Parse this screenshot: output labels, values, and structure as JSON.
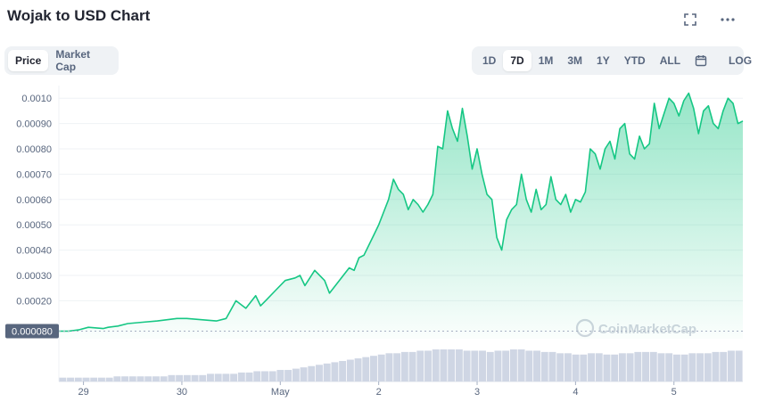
{
  "header": {
    "title": "Wojak to USD Chart",
    "fullscreen_icon": "expand-icon",
    "more_icon": "more-horizontal-icon"
  },
  "metric_tabs": [
    {
      "label": "Price",
      "active": true
    },
    {
      "label": "Market Cap",
      "active": false
    }
  ],
  "range_tabs": [
    {
      "label": "1D",
      "active": false
    },
    {
      "label": "7D",
      "active": true
    },
    {
      "label": "1M",
      "active": false
    },
    {
      "label": "3M",
      "active": false
    },
    {
      "label": "1Y",
      "active": false
    },
    {
      "label": "YTD",
      "active": false
    },
    {
      "label": "ALL",
      "active": false
    }
  ],
  "calendar_icon": "calendar-icon",
  "log_label": "LOG",
  "watermark": "CoinMarketCap",
  "colors": {
    "line": "#16c784",
    "volume": "#cfd6e4",
    "badge": "#58667e",
    "grid": "#eff2f5"
  },
  "chart_data": {
    "type": "area",
    "title": "Wojak to USD Chart",
    "xlabel": "",
    "ylabel": "",
    "ylim": [
      5e-05,
      0.00105
    ],
    "y_ticks": [
      "0.0010",
      "0.00090",
      "0.00080",
      "0.00070",
      "0.00060",
      "0.00050",
      "0.00040",
      "0.00030",
      "0.00020",
      "0.000080"
    ],
    "y_tick_values": [
      0.001,
      0.0009,
      0.0008,
      0.0007,
      0.0006,
      0.0005,
      0.0004,
      0.0003,
      0.0002
    ],
    "current_price_label": "0.000080",
    "current_price_value": 8e-05,
    "x_ticks": [
      {
        "label": "29",
        "t": 0.25
      },
      {
        "label": "30",
        "t": 1.25
      },
      {
        "label": "May",
        "t": 2.25
      },
      {
        "label": "2",
        "t": 3.25
      },
      {
        "label": "3",
        "t": 4.25
      },
      {
        "label": "4",
        "t": 5.25
      },
      {
        "label": "5",
        "t": 6.25
      }
    ],
    "xlim": [
      0,
      6.95
    ],
    "series": [
      {
        "values_t": [
          0.0,
          0.1,
          0.2,
          0.3,
          0.45,
          0.5,
          0.6,
          0.7,
          0.85,
          1.0,
          1.1,
          1.2,
          1.3,
          1.45,
          1.6,
          1.7,
          1.8,
          1.9,
          2.0,
          2.05,
          2.1,
          2.2,
          2.3,
          2.4,
          2.45,
          2.5,
          2.6,
          2.7,
          2.75,
          2.85,
          2.95,
          3.0,
          3.05,
          3.1,
          3.2,
          3.25,
          3.3,
          3.35,
          3.4,
          3.45,
          3.5,
          3.55,
          3.6,
          3.65,
          3.7,
          3.75,
          3.8,
          3.85,
          3.9,
          3.95,
          4.0,
          4.05,
          4.1,
          4.15,
          4.2,
          4.25,
          4.3,
          4.35,
          4.4,
          4.45,
          4.5,
          4.55,
          4.6,
          4.65,
          4.7,
          4.75,
          4.8,
          4.85,
          4.9,
          4.95,
          5.0,
          5.05,
          5.1,
          5.15,
          5.2,
          5.25,
          5.3,
          5.35,
          5.4,
          5.45,
          5.5,
          5.55,
          5.6,
          5.65,
          5.7,
          5.75,
          5.8,
          5.85,
          5.9,
          5.95,
          6.0,
          6.05,
          6.1,
          6.15,
          6.2,
          6.25,
          6.3,
          6.35,
          6.4,
          6.45,
          6.5,
          6.55,
          6.6,
          6.65,
          6.7,
          6.75,
          6.8,
          6.85,
          6.9,
          6.95
        ],
        "values": [
          8e-05,
          8e-05,
          8.5e-05,
          9.5e-05,
          9e-05,
          9.5e-05,
          0.0001,
          0.00011,
          0.000115,
          0.00012,
          0.000125,
          0.00013,
          0.00013,
          0.000125,
          0.00012,
          0.00013,
          0.0002,
          0.00017,
          0.00022,
          0.00018,
          0.0002,
          0.00024,
          0.00028,
          0.00029,
          0.0003,
          0.00026,
          0.00032,
          0.00028,
          0.00023,
          0.00028,
          0.00033,
          0.00032,
          0.00037,
          0.00038,
          0.00046,
          0.0005,
          0.00055,
          0.0006,
          0.00068,
          0.00064,
          0.00062,
          0.00056,
          0.0006,
          0.00058,
          0.00055,
          0.00058,
          0.00062,
          0.00081,
          0.0008,
          0.00095,
          0.00088,
          0.00083,
          0.00096,
          0.00085,
          0.00072,
          0.0008,
          0.0007,
          0.00062,
          0.0006,
          0.00045,
          0.0004,
          0.00052,
          0.00056,
          0.00058,
          0.0007,
          0.0006,
          0.00055,
          0.00064,
          0.00056,
          0.00058,
          0.00069,
          0.0006,
          0.00058,
          0.00062,
          0.00055,
          0.0006,
          0.00059,
          0.00063,
          0.0008,
          0.00078,
          0.00072,
          0.0008,
          0.00083,
          0.00076,
          0.00088,
          0.0009,
          0.00078,
          0.00076,
          0.00085,
          0.0008,
          0.00082,
          0.00098,
          0.00088,
          0.00094,
          0.001,
          0.00098,
          0.00093,
          0.00099,
          0.00102,
          0.00096,
          0.00086,
          0.00095,
          0.00097,
          0.0009,
          0.00088,
          0.00095,
          0.001,
          0.00098,
          0.0009,
          0.00091
        ]
      }
    ],
    "volume": [
      3,
      3,
      3,
      3,
      3,
      3,
      3,
      4,
      4,
      4,
      4,
      4,
      4,
      4,
      5,
      5,
      5,
      5,
      5,
      6,
      6,
      6,
      6,
      7,
      7,
      8,
      8,
      8,
      9,
      9,
      10,
      11,
      12,
      13,
      14,
      15,
      16,
      17,
      18,
      19,
      20,
      21,
      22,
      22,
      23,
      23,
      24,
      24,
      25,
      25,
      25,
      25,
      24,
      24,
      24,
      23,
      24,
      24,
      25,
      25,
      24,
      24,
      23,
      23,
      22,
      22,
      21,
      21,
      22,
      22,
      21,
      21,
      22,
      22,
      23,
      23,
      23,
      22,
      22,
      21,
      21,
      22,
      22,
      22,
      23,
      23,
      24,
      24
    ]
  }
}
